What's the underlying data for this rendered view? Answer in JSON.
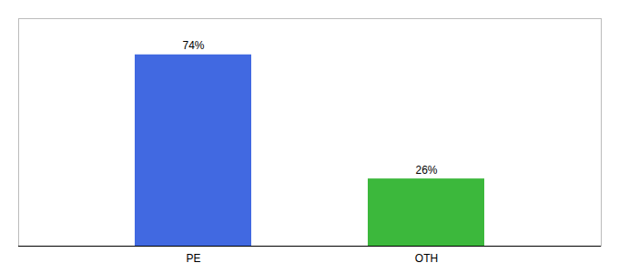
{
  "chart_data": {
    "type": "bar",
    "categories": [
      "PE",
      "OTH"
    ],
    "values": [
      74,
      26
    ],
    "value_labels": [
      "74%",
      "26%"
    ],
    "colors": [
      "#4169e1",
      "#3cb83c"
    ],
    "ylim": [
      0,
      88
    ],
    "data_labels": true,
    "tick_labels": "x"
  }
}
